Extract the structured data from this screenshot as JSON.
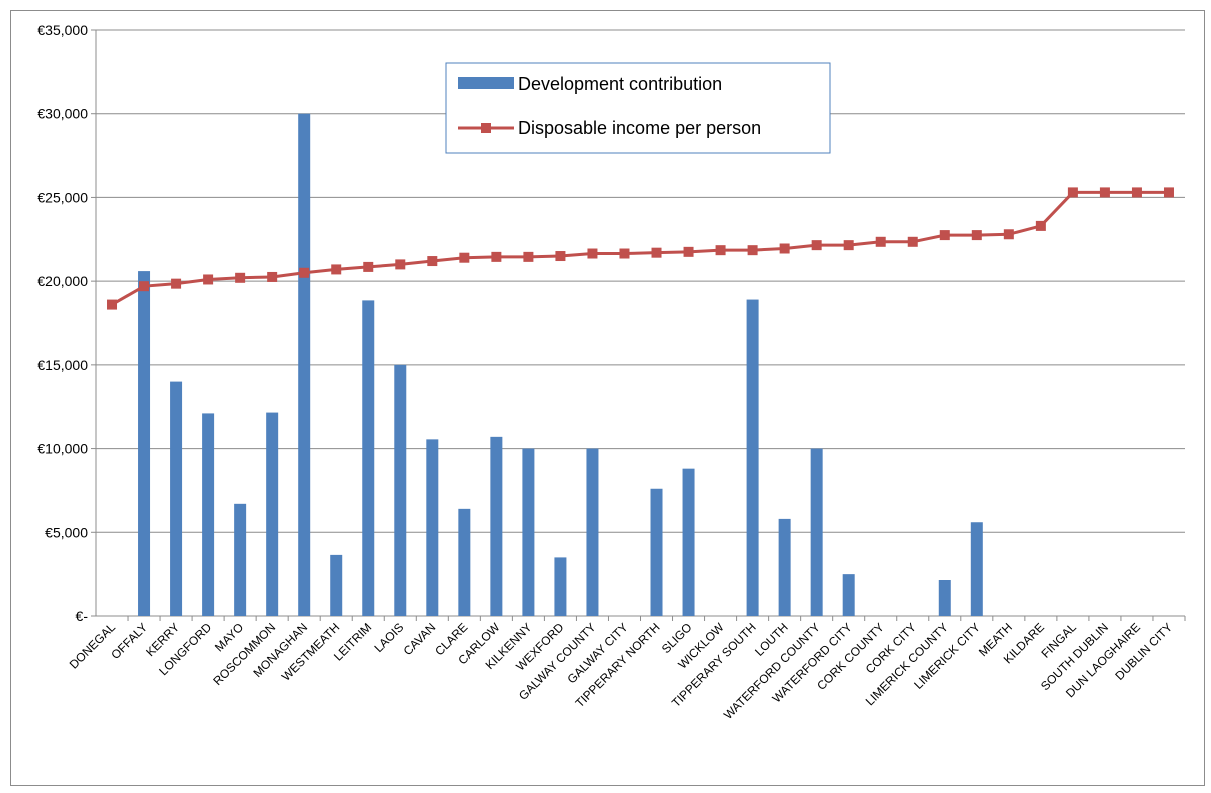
{
  "chart_data": {
    "type": "bar",
    "categories": [
      "DONEGAL",
      "OFFALY",
      "KERRY",
      "LONGFORD",
      "MAYO",
      "ROSCOMMON",
      "MONAGHAN",
      "WESTMEATH",
      "LEITRIM",
      "LAOIS",
      "CAVAN",
      "CLARE",
      "CARLOW",
      "KILKENNY",
      "WEXFORD",
      "GALWAY COUNTY",
      "GALWAY CITY",
      "TIPPERARY NORTH",
      "SLIGO",
      "WICKLOW",
      "TIPPERARY SOUTH",
      "LOUTH",
      "WATERFORD COUNTY",
      "WATERFORD CITY",
      "CORK COUNTY",
      "CORK CITY",
      "LIMERICK COUNTY",
      "LIMERICK CITY",
      "MEATH",
      "KILDARE",
      "FINGAL",
      "SOUTH DUBLIN",
      "DUN LAOGHAIRE",
      "DUBLIN CITY"
    ],
    "series": [
      {
        "name": "Development contribution",
        "type": "bar",
        "color": "#4f81bd",
        "values": [
          0,
          20600,
          14000,
          12100,
          6700,
          12150,
          30000,
          3650,
          18850,
          15000,
          10550,
          6400,
          10700,
          10000,
          3500,
          10000,
          0,
          7600,
          8800,
          0,
          18900,
          5800,
          10000,
          2500,
          0,
          0,
          2150,
          5600,
          0,
          0,
          0,
          0,
          0,
          0
        ]
      },
      {
        "name": "Disposable income per person",
        "type": "line",
        "color": "#c0504d",
        "values": [
          18600,
          19700,
          19850,
          20100,
          20200,
          20250,
          20500,
          20700,
          20850,
          21000,
          21200,
          21400,
          21450,
          21450,
          21500,
          21650,
          21650,
          21700,
          21750,
          21850,
          21850,
          21950,
          22150,
          22150,
          22350,
          22350,
          22750,
          22750,
          22800,
          23300,
          25300,
          25300,
          25300,
          25300
        ]
      }
    ],
    "yticks": [
      "€-",
      "€5,000",
      "€10,000",
      "€15,000",
      "€20,000",
      "€25,000",
      "€30,000",
      "€35,000"
    ],
    "ylim": [
      0,
      35000
    ],
    "grid": true,
    "legend_position": "top-center"
  }
}
